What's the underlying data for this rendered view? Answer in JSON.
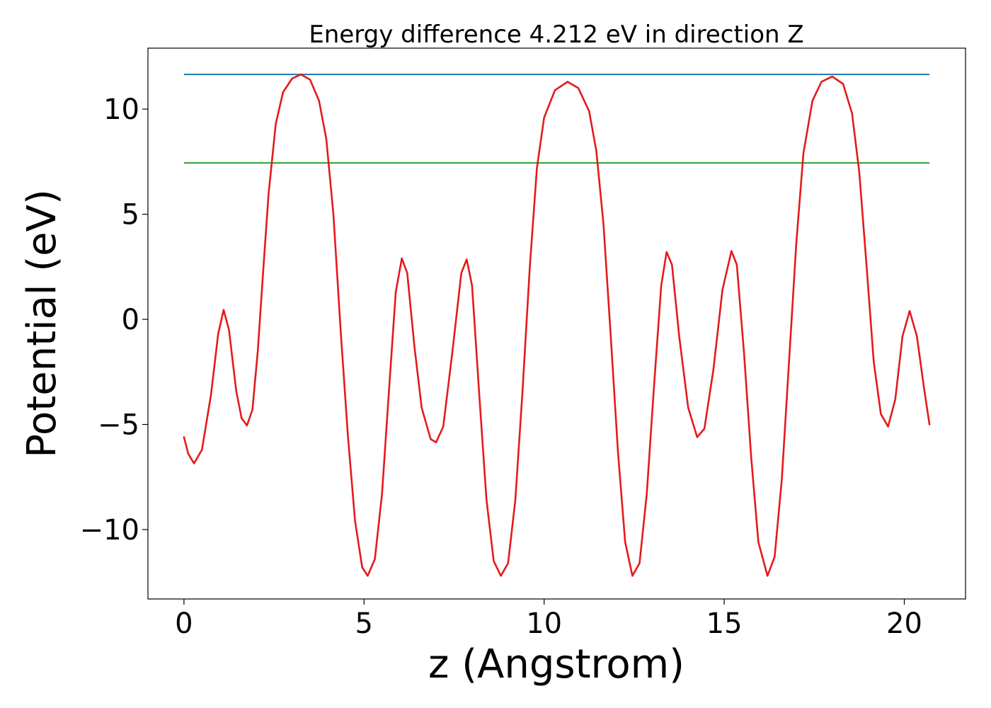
{
  "chart_data": {
    "type": "line",
    "title": "Energy difference 4.212 eV in direction Z",
    "xlabel": "z (Angstrom)",
    "ylabel": "Potential (eV)",
    "xlim": [
      -1.0,
      21.7
    ],
    "ylim": [
      -13.3,
      12.9
    ],
    "x_ticks": [
      0,
      5,
      10,
      15,
      20
    ],
    "x_tick_labels": [
      "0",
      "5",
      "10",
      "15",
      "20"
    ],
    "y_ticks": [
      -10,
      -5,
      0,
      5,
      10
    ],
    "y_tick_labels": [
      "−10",
      "−5",
      "0",
      "5",
      "10"
    ],
    "grid": false,
    "legend": "none",
    "hlines": [
      {
        "y": 11.65,
        "x_range": [
          0,
          20.7
        ],
        "color": "#1f77b4"
      },
      {
        "y": 7.44,
        "x_range": [
          0,
          20.7
        ],
        "color": "#2ca02c"
      }
    ],
    "series": [
      {
        "color": "#e41a1c",
        "points": [
          [
            0.0,
            -5.6
          ],
          [
            0.12,
            -6.4
          ],
          [
            0.28,
            -6.85
          ],
          [
            0.5,
            -6.2
          ],
          [
            0.75,
            -3.6
          ],
          [
            0.95,
            -0.7
          ],
          [
            1.1,
            0.45
          ],
          [
            1.25,
            -0.5
          ],
          [
            1.45,
            -3.4
          ],
          [
            1.6,
            -4.7
          ],
          [
            1.75,
            -5.05
          ],
          [
            1.9,
            -4.3
          ],
          [
            2.05,
            -1.5
          ],
          [
            2.2,
            2.3
          ],
          [
            2.35,
            6.0
          ],
          [
            2.55,
            9.3
          ],
          [
            2.75,
            10.8
          ],
          [
            3.0,
            11.45
          ],
          [
            3.25,
            11.65
          ],
          [
            3.5,
            11.4
          ],
          [
            3.75,
            10.4
          ],
          [
            3.95,
            8.6
          ],
          [
            4.15,
            5.0
          ],
          [
            4.35,
            -0.5
          ],
          [
            4.55,
            -5.5
          ],
          [
            4.75,
            -9.6
          ],
          [
            4.95,
            -11.8
          ],
          [
            5.1,
            -12.2
          ],
          [
            5.3,
            -11.4
          ],
          [
            5.5,
            -8.3
          ],
          [
            5.7,
            -3.2
          ],
          [
            5.88,
            1.3
          ],
          [
            6.05,
            2.9
          ],
          [
            6.2,
            2.2
          ],
          [
            6.4,
            -1.3
          ],
          [
            6.6,
            -4.2
          ],
          [
            6.85,
            -5.7
          ],
          [
            7.0,
            -5.85
          ],
          [
            7.2,
            -5.1
          ],
          [
            7.45,
            -1.6
          ],
          [
            7.7,
            2.2
          ],
          [
            7.85,
            2.85
          ],
          [
            8.0,
            1.6
          ],
          [
            8.2,
            -3.6
          ],
          [
            8.4,
            -8.6
          ],
          [
            8.6,
            -11.5
          ],
          [
            8.8,
            -12.2
          ],
          [
            9.0,
            -11.6
          ],
          [
            9.2,
            -8.6
          ],
          [
            9.4,
            -3.4
          ],
          [
            9.6,
            2.4
          ],
          [
            9.8,
            7.2
          ],
          [
            10.0,
            9.6
          ],
          [
            10.3,
            10.9
          ],
          [
            10.65,
            11.3
          ],
          [
            10.95,
            11.0
          ],
          [
            11.25,
            9.9
          ],
          [
            11.45,
            8.0
          ],
          [
            11.65,
            4.5
          ],
          [
            11.85,
            -0.8
          ],
          [
            12.05,
            -6.3
          ],
          [
            12.25,
            -10.6
          ],
          [
            12.45,
            -12.2
          ],
          [
            12.65,
            -11.6
          ],
          [
            12.85,
            -8.3
          ],
          [
            13.05,
            -3.2
          ],
          [
            13.25,
            1.6
          ],
          [
            13.4,
            3.2
          ],
          [
            13.55,
            2.6
          ],
          [
            13.75,
            -0.8
          ],
          [
            14.0,
            -4.2
          ],
          [
            14.25,
            -5.6
          ],
          [
            14.45,
            -5.2
          ],
          [
            14.7,
            -2.4
          ],
          [
            14.95,
            1.4
          ],
          [
            15.2,
            3.25
          ],
          [
            15.35,
            2.6
          ],
          [
            15.55,
            -1.6
          ],
          [
            15.75,
            -6.6
          ],
          [
            15.95,
            -10.6
          ],
          [
            16.2,
            -12.2
          ],
          [
            16.4,
            -11.3
          ],
          [
            16.6,
            -7.6
          ],
          [
            16.8,
            -2.0
          ],
          [
            17.0,
            3.6
          ],
          [
            17.2,
            7.9
          ],
          [
            17.45,
            10.4
          ],
          [
            17.7,
            11.3
          ],
          [
            18.0,
            11.55
          ],
          [
            18.3,
            11.2
          ],
          [
            18.55,
            9.8
          ],
          [
            18.75,
            7.0
          ],
          [
            18.95,
            2.6
          ],
          [
            19.15,
            -2.0
          ],
          [
            19.35,
            -4.5
          ],
          [
            19.55,
            -5.1
          ],
          [
            19.75,
            -3.8
          ],
          [
            19.95,
            -0.8
          ],
          [
            20.15,
            0.4
          ],
          [
            20.35,
            -0.8
          ],
          [
            20.55,
            -3.3
          ],
          [
            20.7,
            -5.0
          ]
        ]
      }
    ]
  }
}
